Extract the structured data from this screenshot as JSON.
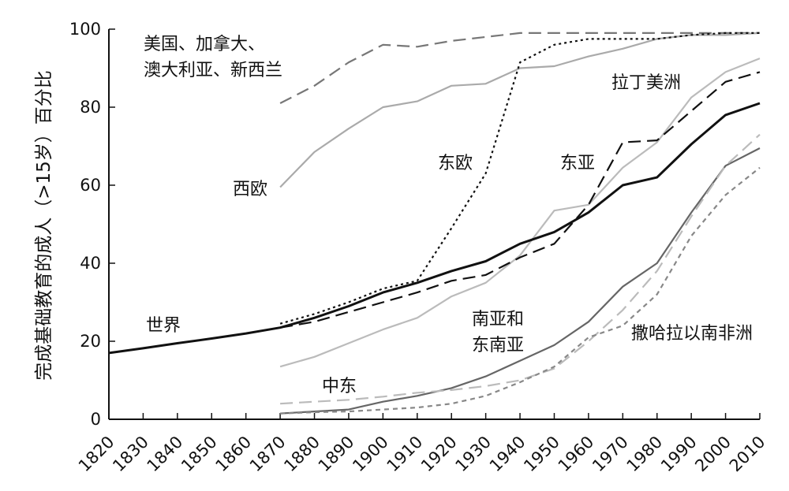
{
  "chart_data": {
    "type": "line",
    "title": "",
    "xlabel": "",
    "ylabel": "完成基础教育的成人（>15岁）百分比",
    "xlim": [
      1820,
      2010
    ],
    "ylim": [
      0,
      100
    ],
    "x_ticks": [
      1820,
      1830,
      1840,
      1850,
      1860,
      1870,
      1880,
      1890,
      1900,
      1910,
      1920,
      1930,
      1940,
      1950,
      1960,
      1970,
      1980,
      1990,
      2000,
      2010
    ],
    "y_ticks": [
      0,
      20,
      40,
      60,
      80,
      100
    ],
    "grid": false,
    "legend": "inline labels",
    "series": [
      {
        "name": "美国、加拿大、澳大利亚、新西兰",
        "label_lines": [
          "美国、加拿大、",
          "澳大利亚、新西兰"
        ],
        "color": "#777777",
        "dash": "long-dash",
        "width": "medium",
        "x": [
          1870,
          1880,
          1890,
          1900,
          1910,
          1920,
          1930,
          1940,
          1950,
          1960,
          1970,
          1980,
          1990,
          2000,
          2010
        ],
        "y": [
          81,
          85.5,
          91.5,
          96,
          95.5,
          97,
          98,
          99,
          99,
          99,
          99,
          99,
          99,
          99,
          99
        ]
      },
      {
        "name": "西欧",
        "label_lines": [
          "西欧"
        ],
        "color": "#aaaaaa",
        "dash": "solid",
        "width": "medium",
        "x": [
          1870,
          1880,
          1890,
          1900,
          1910,
          1920,
          1930,
          1940,
          1950,
          1960,
          1970,
          1980,
          1990,
          2000,
          2010
        ],
        "y": [
          59.5,
          68.5,
          74.5,
          80,
          81.5,
          85.5,
          86,
          90,
          90.5,
          93,
          95,
          97.5,
          98.5,
          98.5,
          99
        ]
      },
      {
        "name": "东欧",
        "label_lines": [
          "东欧"
        ],
        "color": "#111111",
        "dash": "dotted",
        "width": "medium",
        "x": [
          1870,
          1880,
          1890,
          1900,
          1910,
          1920,
          1930,
          1940,
          1950,
          1960,
          1970,
          1980,
          1990,
          2000,
          2010
        ],
        "y": [
          24.5,
          27,
          30,
          33.5,
          35.5,
          49,
          63,
          91.5,
          96,
          97.5,
          97.5,
          97.5,
          98.5,
          99,
          99
        ]
      },
      {
        "name": "拉丁美洲",
        "label_lines": [
          "拉丁美洲"
        ],
        "color": "#bbbbbb",
        "dash": "solid",
        "width": "medium",
        "x": [
          1870,
          1880,
          1890,
          1900,
          1910,
          1920,
          1930,
          1940,
          1950,
          1960,
          1970,
          1980,
          1990,
          2000,
          2010
        ],
        "y": [
          13.5,
          16,
          19.5,
          23,
          26,
          31.5,
          35,
          42,
          53.5,
          55,
          64.5,
          71,
          82.5,
          89,
          92.5
        ]
      },
      {
        "name": "东亚",
        "label_lines": [
          "东亚"
        ],
        "color": "#111111",
        "dash": "long-dash",
        "width": "medium",
        "x": [
          1870,
          1880,
          1890,
          1900,
          1910,
          1920,
          1930,
          1940,
          1950,
          1960,
          1970,
          1980,
          1990,
          2000,
          2010
        ],
        "y": [
          23.5,
          25,
          27.5,
          30,
          32.5,
          35.5,
          37,
          41.5,
          45,
          55,
          71,
          71.5,
          79,
          86.5,
          89
        ]
      },
      {
        "name": "世界",
        "label_lines": [
          "世界"
        ],
        "color": "#111111",
        "dash": "solid",
        "width": "thick",
        "x": [
          1820,
          1830,
          1840,
          1850,
          1860,
          1870,
          1880,
          1890,
          1900,
          1910,
          1920,
          1930,
          1940,
          1950,
          1960,
          1970,
          1980,
          1990,
          2000,
          2010
        ],
        "y": [
          17,
          18.2,
          19.5,
          20.7,
          22,
          23.5,
          26,
          29,
          32.5,
          35,
          38,
          40.5,
          45,
          48,
          53,
          60,
          62,
          70.5,
          78,
          81
        ]
      },
      {
        "name": "南亚和东南亚",
        "label_lines": [
          "南亚和",
          "东南亚"
        ],
        "color": "#666666",
        "dash": "solid",
        "width": "medium",
        "x": [
          1870,
          1880,
          1890,
          1900,
          1910,
          1920,
          1930,
          1940,
          1950,
          1960,
          1970,
          1980,
          1990,
          2000,
          2010
        ],
        "y": [
          1.5,
          2,
          2.5,
          4.5,
          6,
          8,
          11,
          15,
          19,
          25,
          34,
          40,
          53,
          65,
          69.5
        ]
      },
      {
        "name": "中东",
        "label_lines": [
          "中东"
        ],
        "color": "#bbbbbb",
        "dash": "long-dash",
        "width": "medium",
        "x": [
          1870,
          1880,
          1890,
          1900,
          1910,
          1920,
          1930,
          1940,
          1950,
          1960,
          1970,
          1980,
          1990,
          2000,
          2010
        ],
        "y": [
          4,
          4.5,
          5,
          5.8,
          6.8,
          7.5,
          8.5,
          10,
          13,
          20,
          28,
          38,
          52,
          65,
          73
        ]
      },
      {
        "name": "撒哈拉以南非洲",
        "label_lines": [
          "撒哈拉以南非洲"
        ],
        "color": "#888888",
        "dash": "short-dash",
        "width": "medium",
        "x": [
          1870,
          1880,
          1890,
          1900,
          1910,
          1920,
          1930,
          1940,
          1950,
          1960,
          1970,
          1980,
          1990,
          2000,
          2010
        ],
        "y": [
          1.5,
          1.8,
          2,
          2.5,
          3,
          4,
          6,
          9.5,
          13.5,
          21,
          24,
          32,
          47,
          57.5,
          64.5
        ]
      }
    ]
  }
}
